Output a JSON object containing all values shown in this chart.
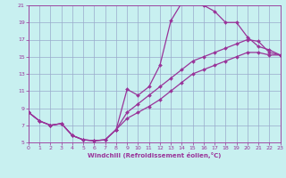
{
  "xlabel": "Windchill (Refroidissement éolien,°C)",
  "bg_color": "#c8f0f0",
  "line_color": "#993399",
  "grid_color": "#99aacc",
  "xlim": [
    0,
    23
  ],
  "ylim": [
    5,
    21
  ],
  "xticks": [
    0,
    1,
    2,
    3,
    4,
    5,
    6,
    7,
    8,
    9,
    10,
    11,
    12,
    13,
    14,
    15,
    16,
    17,
    18,
    19,
    20,
    21,
    22,
    23
  ],
  "yticks": [
    5,
    7,
    9,
    11,
    13,
    15,
    17,
    19,
    21
  ],
  "curve1_x": [
    0,
    1,
    2,
    3,
    4,
    5,
    6,
    7,
    8,
    9,
    10,
    11,
    12,
    13,
    14,
    15,
    16,
    17,
    18,
    19,
    20,
    21,
    22,
    23
  ],
  "curve1_y": [
    8.5,
    7.5,
    7.0,
    7.2,
    5.8,
    5.3,
    5.2,
    5.3,
    6.5,
    11.2,
    10.5,
    11.5,
    14.0,
    19.2,
    21.3,
    21.3,
    21.0,
    20.3,
    19.0,
    19.0,
    17.3,
    16.2,
    15.8,
    15.2
  ],
  "curve2_x": [
    0,
    1,
    2,
    3,
    4,
    5,
    6,
    7,
    8,
    9,
    10,
    11,
    12,
    13,
    14,
    15,
    16,
    17,
    18,
    19,
    20,
    21,
    22,
    23
  ],
  "curve2_y": [
    8.5,
    7.5,
    7.0,
    7.2,
    5.8,
    5.3,
    5.2,
    5.3,
    6.5,
    8.5,
    9.5,
    10.5,
    11.5,
    12.5,
    13.5,
    14.5,
    15.0,
    15.5,
    16.0,
    16.5,
    17.0,
    16.8,
    15.5,
    15.2
  ],
  "curve3_x": [
    0,
    1,
    2,
    3,
    4,
    5,
    6,
    7,
    8,
    9,
    10,
    11,
    12,
    13,
    14,
    15,
    16,
    17,
    18,
    19,
    20,
    21,
    22,
    23
  ],
  "curve3_y": [
    8.5,
    7.5,
    7.0,
    7.2,
    5.8,
    5.3,
    5.2,
    5.3,
    6.5,
    7.8,
    8.5,
    9.2,
    10.0,
    11.0,
    12.0,
    13.0,
    13.5,
    14.0,
    14.5,
    15.0,
    15.5,
    15.5,
    15.2,
    15.2
  ]
}
